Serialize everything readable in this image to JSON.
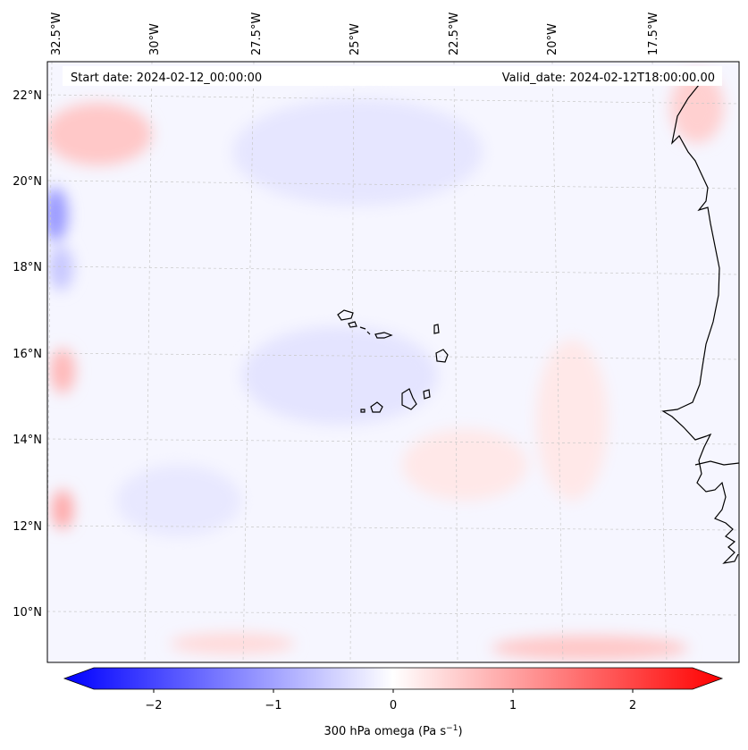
{
  "header": {
    "start_date": "Start date: 2024-02-12_00:00:00",
    "valid_date": "Valid_date: 2024-02-12T18:00:00.00"
  },
  "axes": {
    "lon_labels": [
      "32.5°W",
      "30°W",
      "27.5°W",
      "25°W",
      "22.5°W",
      "20°W",
      "17.5°W"
    ],
    "lat_labels": [
      "22°N",
      "20°N",
      "18°N",
      "16°N",
      "14°N",
      "12°N",
      "10°N"
    ]
  },
  "colorbar": {
    "ticks": [
      "−2",
      "−1",
      "0",
      "1",
      "2"
    ],
    "label": "300 hPa omega (Pa s",
    "label_sup": "−1",
    "label_close": ")",
    "colors": {
      "negative": "#0000ff",
      "zero": "#ffffff",
      "positive": "#ff0000"
    }
  },
  "map": {
    "coastline_color": "#000000",
    "gridline_color": "#c8c8c8"
  },
  "chart_data": {
    "type": "heatmap",
    "title": "300 hPa omega",
    "variable": "omega",
    "units": "Pa s-1",
    "level_hPa": 300,
    "color_range": [
      -2.5,
      2.5
    ],
    "colorbar_ticks": [
      -2,
      -1,
      0,
      1,
      2
    ],
    "lon_ticks": [
      -32.5,
      -30,
      -27.5,
      -25,
      -22.5,
      -20,
      -17.5
    ],
    "lat_ticks": [
      22,
      20,
      18,
      16,
      14,
      12,
      10
    ],
    "lon_range": [
      -33,
      -16
    ],
    "lat_range": [
      9,
      22.5
    ],
    "features": [
      {
        "region": "west edge near 19.5N",
        "omega": -0.9
      },
      {
        "region": "west edge near 21.5N",
        "omega": 0.6
      },
      {
        "region": "west edge near 15.5N",
        "omega": 0.7
      },
      {
        "region": "west edge near 12.3N",
        "omega": 0.8
      },
      {
        "region": "central Cape Verde area",
        "omega": -0.2
      },
      {
        "region": "south band near 9N",
        "omega": 0.4
      },
      {
        "region": "northeast coast near 21N",
        "omega": 0.5
      }
    ]
  }
}
